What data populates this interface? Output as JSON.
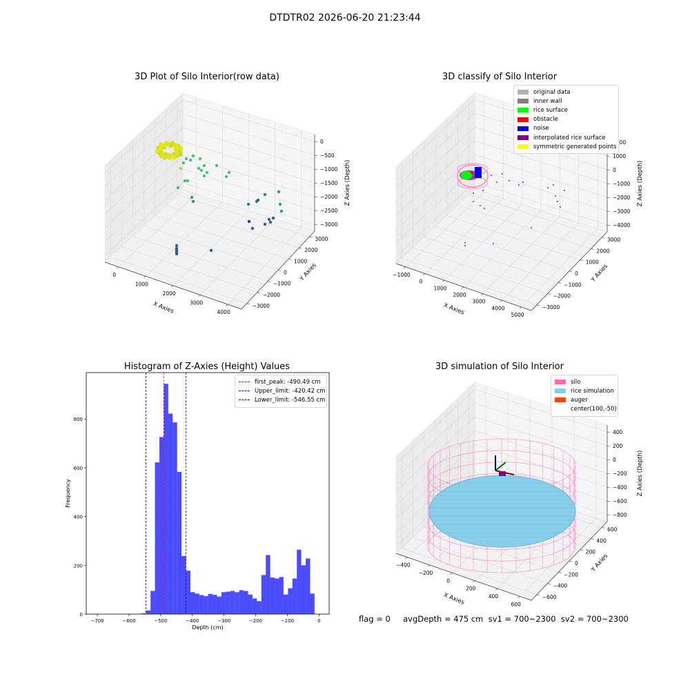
{
  "suptitle": "DTDTR02 2026-06-20 21:23:44",
  "status_line": "flag = 0     avgDepth = 475 cm  sv1 = 700~2300  sv2 = 700~2300",
  "chart_data": [
    {
      "type": "scatter3d",
      "title": "3D Plot of Silo Interior(row data)",
      "xlabel": "X Axies",
      "ylabel": "Y Axies",
      "zlabel": "Z Axies (Depth)",
      "xticks": [
        "0",
        "1000",
        "2000",
        "3000",
        "4000"
      ],
      "yticks": [
        "3000",
        "2000",
        "1000",
        "0",
        "−1000",
        "−2000",
        "−3000"
      ],
      "zticks": [
        "0",
        "−500",
        "−1000",
        "−1500",
        "−2000",
        "−2500",
        "−3000"
      ],
      "colormap": [
        "#fde725",
        "#a0da39",
        "#4ac16d",
        "#1fa187",
        "#277f8e",
        "#365c8d",
        "#46327e"
      ]
    },
    {
      "type": "scatter3d",
      "title": "3D classify of Silo Interior",
      "xlabel": "X Axies",
      "ylabel": "Y Axies",
      "zlabel": "Z Axies (Depth)",
      "xticks": [
        "−1000",
        "0",
        "1000",
        "2000",
        "3000",
        "4000",
        "5000"
      ],
      "yticks": [
        "3000",
        "2000",
        "1000",
        "0",
        "−1000",
        "−2000",
        "−3000"
      ],
      "zticks": [
        "2000",
        "1000",
        "0",
        "−1000",
        "−2000",
        "−3000",
        "−4000"
      ],
      "legend": [
        {
          "label": "original data",
          "color": "#b0b0b0"
        },
        {
          "label": "inner wall",
          "color": "#808080"
        },
        {
          "label": "rice surface",
          "color": "#00ff00"
        },
        {
          "label": "obstacle",
          "color": "#ff0000"
        },
        {
          "label": "noise",
          "color": "#0000ff"
        },
        {
          "label": "interpolated rice surface",
          "color": "#800080"
        },
        {
          "label": "symmetric generated points",
          "color": "#ffff00"
        }
      ]
    },
    {
      "type": "bar",
      "title": "Histogram of Z-Axies (Height) Values",
      "xlabel": "Depth (cm)",
      "ylabel": "Frequency",
      "xlim": [
        -735,
        32
      ],
      "ylim": [
        0,
        990
      ],
      "xticks": [
        -700,
        -600,
        -500,
        -400,
        -300,
        -200,
        -100,
        0
      ],
      "yticks": [
        0,
        200,
        400,
        600,
        800
      ],
      "bin_width": 14,
      "bins": [
        {
          "x": -560,
          "v": 3
        },
        {
          "x": -546,
          "v": 15
        },
        {
          "x": -532,
          "v": 95
        },
        {
          "x": -518,
          "v": 622
        },
        {
          "x": -504,
          "v": 726
        },
        {
          "x": -490,
          "v": 944
        },
        {
          "x": -476,
          "v": 822
        },
        {
          "x": -462,
          "v": 786
        },
        {
          "x": -448,
          "v": 583
        },
        {
          "x": -434,
          "v": 238
        },
        {
          "x": -420,
          "v": 178
        },
        {
          "x": -406,
          "v": 90
        },
        {
          "x": -392,
          "v": 84
        },
        {
          "x": -378,
          "v": 78
        },
        {
          "x": -364,
          "v": 74
        },
        {
          "x": -350,
          "v": 83
        },
        {
          "x": -336,
          "v": 79
        },
        {
          "x": -322,
          "v": 72
        },
        {
          "x": -308,
          "v": 90
        },
        {
          "x": -294,
          "v": 92
        },
        {
          "x": -280,
          "v": 95
        },
        {
          "x": -266,
          "v": 90
        },
        {
          "x": -252,
          "v": 98
        },
        {
          "x": -238,
          "v": 95
        },
        {
          "x": -224,
          "v": 80
        },
        {
          "x": -210,
          "v": 64
        },
        {
          "x": -196,
          "v": 53
        },
        {
          "x": -182,
          "v": 160
        },
        {
          "x": -168,
          "v": 242
        },
        {
          "x": -154,
          "v": 150
        },
        {
          "x": -140,
          "v": 146
        },
        {
          "x": -126,
          "v": 152
        },
        {
          "x": -112,
          "v": 80
        },
        {
          "x": -98,
          "v": 106
        },
        {
          "x": -84,
          "v": 146
        },
        {
          "x": -70,
          "v": 264
        },
        {
          "x": -56,
          "v": 200
        },
        {
          "x": -42,
          "v": 228
        },
        {
          "x": -28,
          "v": 84
        }
      ],
      "bar_color": "#0000ff",
      "vlines": [
        {
          "label": "first_peak: -490.49 cm",
          "x": -490.49,
          "color": "#ff0000"
        },
        {
          "label": "Upper_limit: -420.42 cm",
          "x": -420.42,
          "color": "#00008b"
        },
        {
          "label": "Lower_limit: -546.55 cm",
          "x": -546.55,
          "color": "#00008b"
        }
      ]
    },
    {
      "type": "surface3d",
      "title": "3D simulation of Silo Interior",
      "xlabel": "X Axies",
      "ylabel": "Y Axies",
      "zlabel": "Z Axies (Depth)",
      "xticks": [
        "−400",
        "−200",
        "0",
        "200",
        "400",
        "600"
      ],
      "yticks": [
        "600",
        "400",
        "200",
        "0",
        "−200",
        "−400",
        "−600"
      ],
      "zticks": [
        "400",
        "200",
        "0",
        "−200",
        "−400",
        "−600",
        "−800"
      ],
      "legend": [
        {
          "label": "silo",
          "color": "#ff69b4"
        },
        {
          "label": "rice simulation",
          "color": "#87ceeb"
        },
        {
          "label": "auger",
          "color": "#ff4500"
        },
        {
          "label": "center(100,-50)",
          "color": ""
        }
      ]
    }
  ]
}
